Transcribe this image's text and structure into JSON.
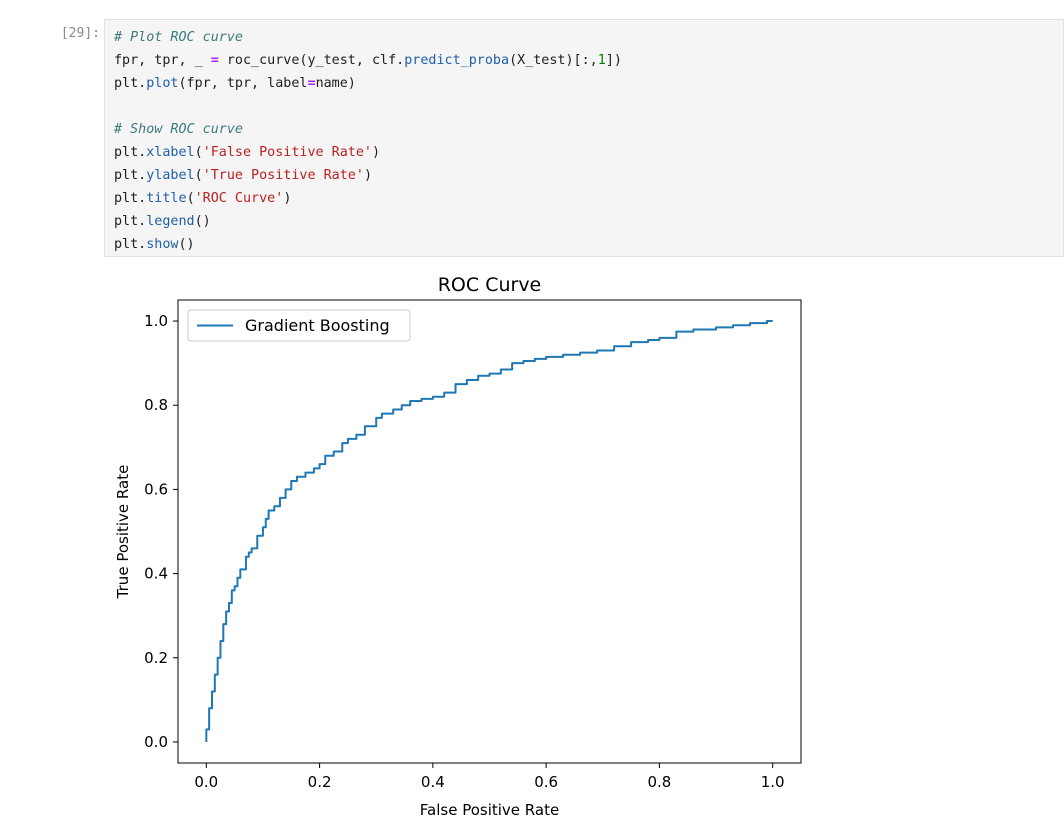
{
  "cell": {
    "prompt": "[29]:",
    "code_lines": [
      [
        {
          "t": "# Plot ROC curve",
          "c": "comment"
        }
      ],
      [
        {
          "t": "fpr, tpr, _ "
        },
        {
          "t": "=",
          "c": "op"
        },
        {
          "t": " roc_curve(y_test, clf."
        },
        {
          "t": "predict_proba",
          "c": "attr"
        },
        {
          "t": "(X_test)[:,"
        },
        {
          "t": "1",
          "c": "num"
        },
        {
          "t": "])"
        }
      ],
      [
        {
          "t": "plt."
        },
        {
          "t": "plot",
          "c": "attr"
        },
        {
          "t": "(fpr, tpr, label"
        },
        {
          "t": "=",
          "c": "op"
        },
        {
          "t": "name)"
        }
      ],
      [
        {
          "t": ""
        }
      ],
      [
        {
          "t": "# Show ROC curve",
          "c": "comment"
        }
      ],
      [
        {
          "t": "plt."
        },
        {
          "t": "xlabel",
          "c": "attr"
        },
        {
          "t": "("
        },
        {
          "t": "'False Positive Rate'",
          "c": "str"
        },
        {
          "t": ")"
        }
      ],
      [
        {
          "t": "plt."
        },
        {
          "t": "ylabel",
          "c": "attr"
        },
        {
          "t": "("
        },
        {
          "t": "'True Positive Rate'",
          "c": "str"
        },
        {
          "t": ")"
        }
      ],
      [
        {
          "t": "plt."
        },
        {
          "t": "title",
          "c": "attr"
        },
        {
          "t": "("
        },
        {
          "t": "'ROC Curve'",
          "c": "str"
        },
        {
          "t": ")"
        }
      ],
      [
        {
          "t": "plt."
        },
        {
          "t": "legend",
          "c": "attr"
        },
        {
          "t": "()"
        }
      ],
      [
        {
          "t": "plt."
        },
        {
          "t": "show",
          "c": "attr"
        },
        {
          "t": "()"
        }
      ]
    ]
  },
  "chart_data": {
    "type": "line",
    "title": "ROC Curve",
    "xlabel": "False Positive Rate",
    "ylabel": "True Positive Rate",
    "xlim": [
      -0.05,
      1.05
    ],
    "ylim": [
      -0.05,
      1.05
    ],
    "xticks": [
      0.0,
      0.2,
      0.4,
      0.6,
      0.8,
      1.0
    ],
    "yticks": [
      0.0,
      0.2,
      0.4,
      0.6,
      0.8,
      1.0
    ],
    "xtick_labels": [
      "0.0",
      "0.2",
      "0.4",
      "0.6",
      "0.8",
      "1.0"
    ],
    "ytick_labels": [
      "0.0",
      "0.2",
      "0.4",
      "0.6",
      "0.8",
      "1.0"
    ],
    "grid": false,
    "legend": "top-left",
    "series": [
      {
        "name": "Gradient Boosting",
        "color": "#1f77b4",
        "x": [
          0.0,
          0.0,
          0.005,
          0.005,
          0.01,
          0.01,
          0.015,
          0.015,
          0.02,
          0.025,
          0.025,
          0.03,
          0.035,
          0.04,
          0.045,
          0.05,
          0.055,
          0.06,
          0.07,
          0.075,
          0.08,
          0.09,
          0.1,
          0.105,
          0.11,
          0.12,
          0.13,
          0.14,
          0.15,
          0.16,
          0.175,
          0.19,
          0.2,
          0.21,
          0.225,
          0.24,
          0.25,
          0.265,
          0.28,
          0.3,
          0.31,
          0.33,
          0.345,
          0.36,
          0.38,
          0.4,
          0.42,
          0.44,
          0.46,
          0.48,
          0.5,
          0.52,
          0.54,
          0.56,
          0.58,
          0.6,
          0.63,
          0.66,
          0.69,
          0.72,
          0.75,
          0.78,
          0.8,
          0.83,
          0.86,
          0.9,
          0.93,
          0.96,
          0.99,
          1.0
        ],
        "y": [
          0.0,
          0.03,
          0.05,
          0.08,
          0.1,
          0.12,
          0.14,
          0.16,
          0.2,
          0.21,
          0.24,
          0.28,
          0.31,
          0.33,
          0.36,
          0.37,
          0.39,
          0.41,
          0.44,
          0.45,
          0.46,
          0.49,
          0.51,
          0.53,
          0.55,
          0.56,
          0.58,
          0.6,
          0.62,
          0.63,
          0.64,
          0.65,
          0.66,
          0.68,
          0.69,
          0.71,
          0.72,
          0.73,
          0.75,
          0.77,
          0.78,
          0.79,
          0.8,
          0.81,
          0.815,
          0.82,
          0.83,
          0.85,
          0.86,
          0.87,
          0.875,
          0.885,
          0.9,
          0.905,
          0.91,
          0.915,
          0.92,
          0.925,
          0.93,
          0.94,
          0.95,
          0.955,
          0.96,
          0.975,
          0.98,
          0.985,
          0.99,
          0.995,
          1.0,
          1.0
        ]
      }
    ]
  }
}
